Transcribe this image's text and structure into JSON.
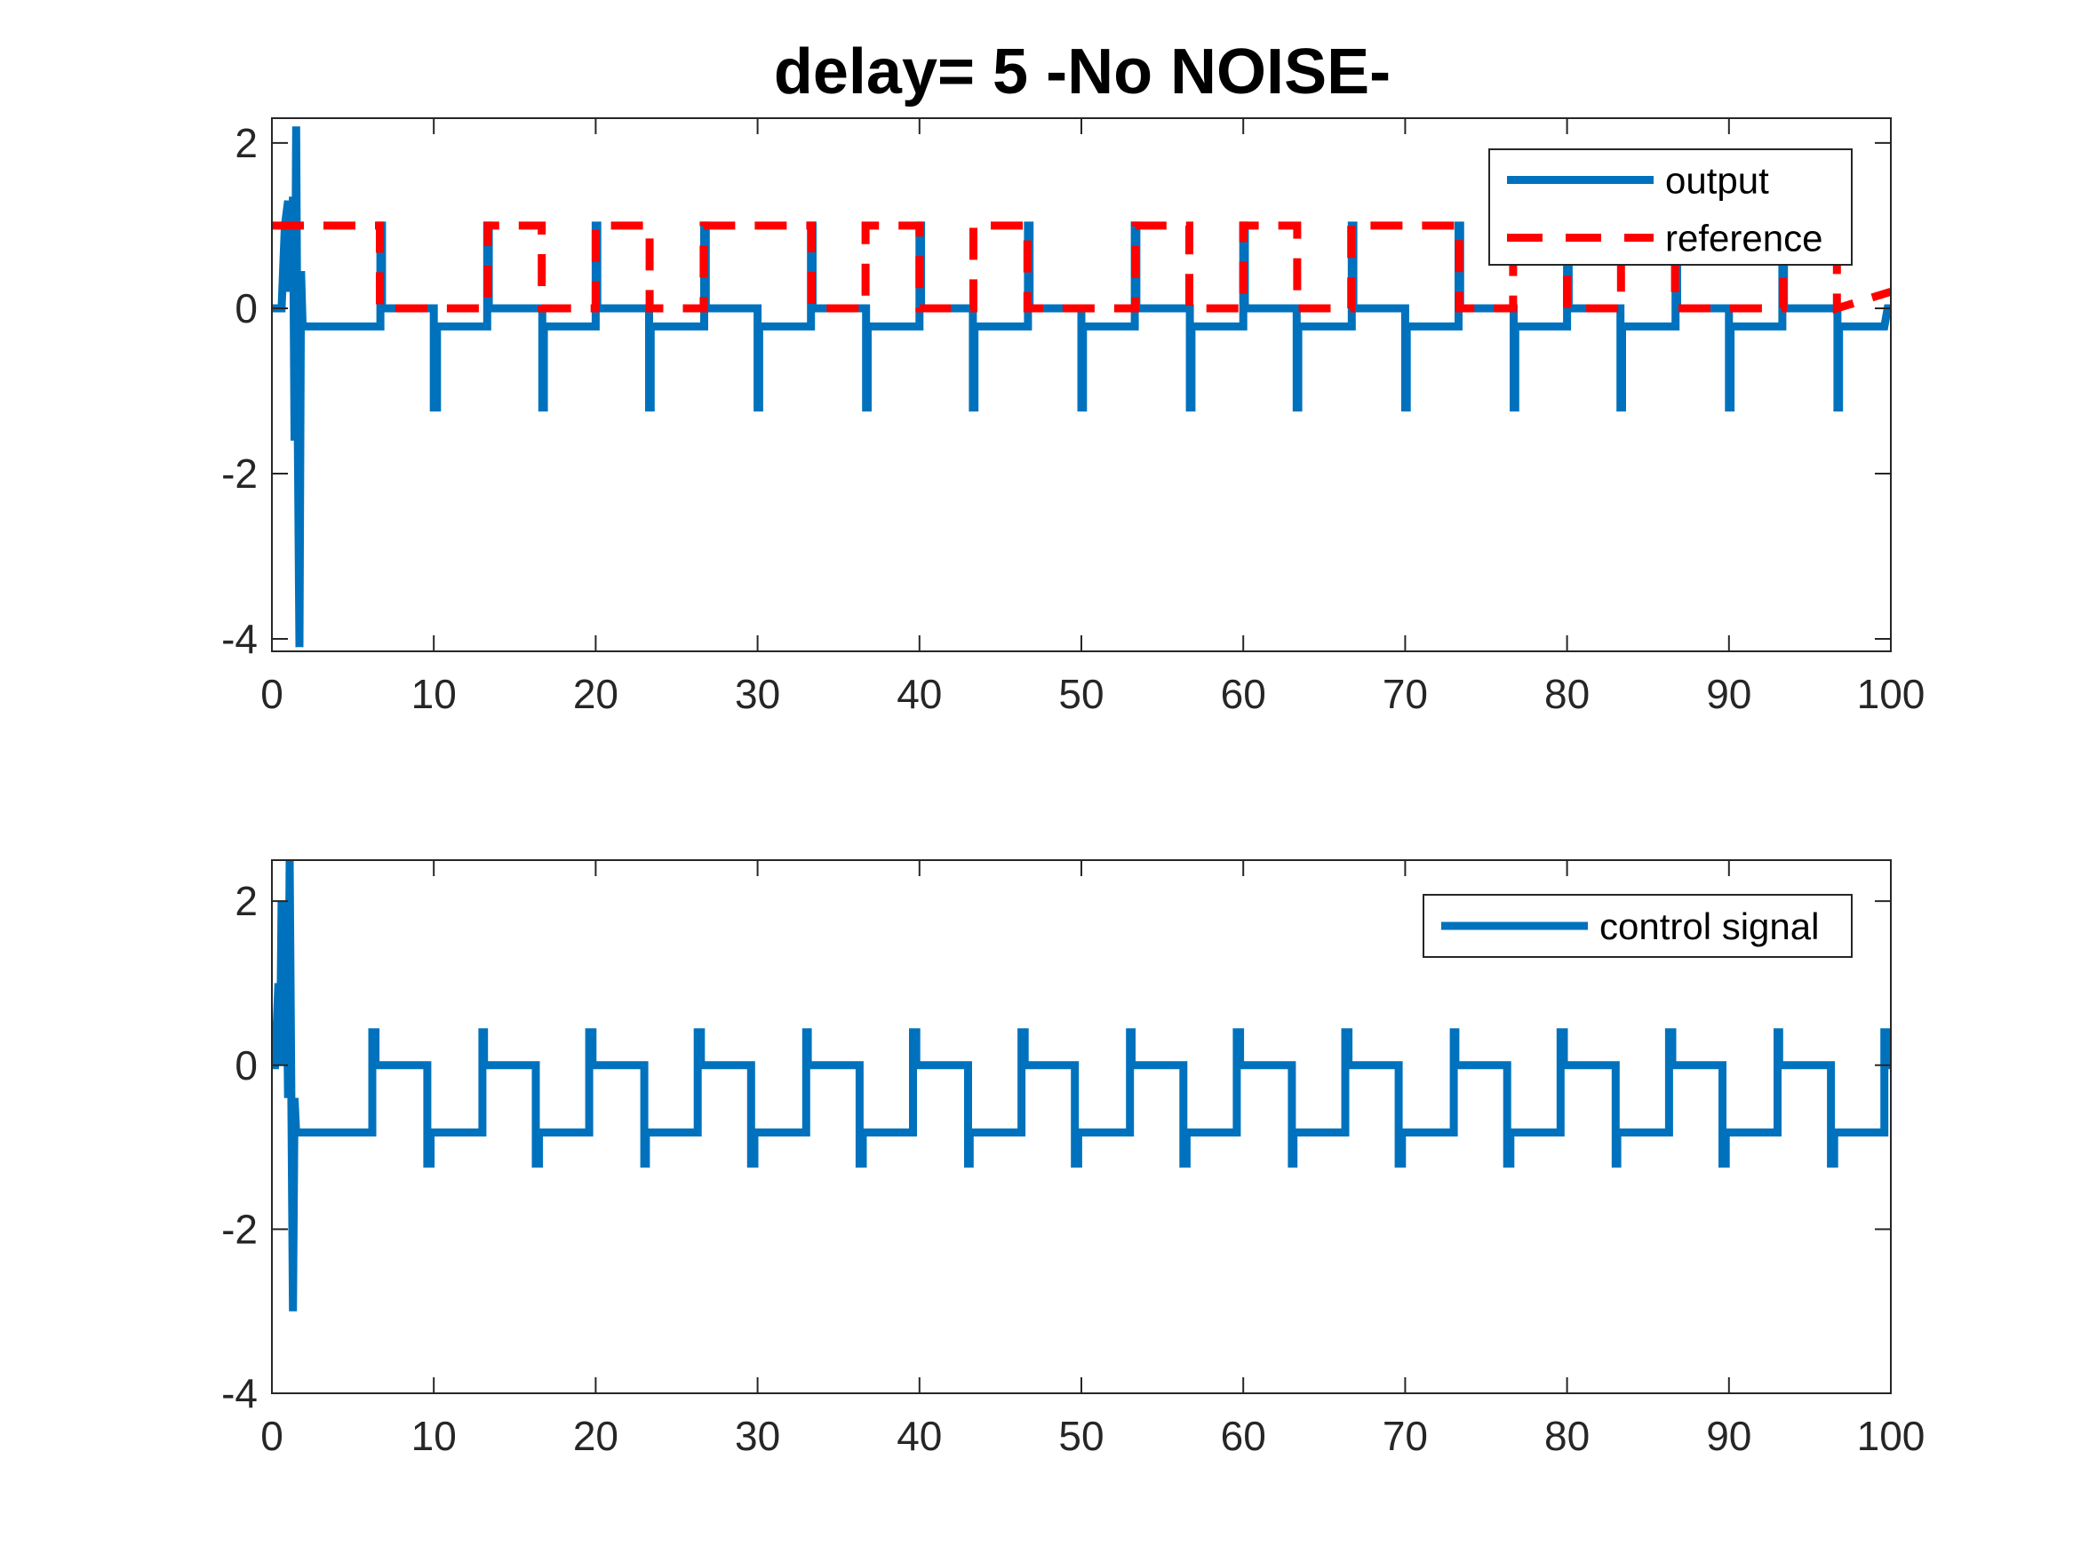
{
  "chart_data": [
    {
      "type": "line",
      "title": "delay= 5  -No NOISE-",
      "xlim": [
        0,
        100
      ],
      "ylim": [
        -4.15,
        2.3
      ],
      "xticks": [
        0,
        10,
        20,
        30,
        40,
        50,
        60,
        70,
        80,
        90,
        100
      ],
      "yticks": [
        -4,
        -2,
        0,
        2
      ],
      "xtick_labels": [
        "0",
        "10",
        "20",
        "30",
        "40",
        "50",
        "60",
        "70",
        "80",
        "90",
        "100"
      ],
      "ytick_labels": [
        "-4",
        "-2",
        "0",
        "2"
      ],
      "grid": false,
      "legend_position": "top-right",
      "series": [
        {
          "name": "output",
          "color": "#0072BD",
          "style": "solid",
          "x": [
            0,
            0.6,
            0.8,
            1.0,
            1.1,
            1.3,
            1.4,
            1.5,
            1.6,
            1.7,
            1.8,
            1.9,
            2.0,
            2.2,
            6.7,
            6.7,
            6.8,
            6.8,
            10.0,
            10.0,
            10.2,
            10.2,
            13.3,
            13.3,
            13.4,
            13.4,
            16.7,
            16.7,
            16.8,
            16.8,
            20.0,
            20.0,
            20.1,
            20.1,
            23.3,
            23.3,
            23.4,
            23.4,
            26.7,
            26.7,
            26.8,
            26.8,
            30.0,
            30.0,
            30.1,
            30.1,
            33.3,
            33.3,
            33.4,
            33.4,
            36.7,
            36.7,
            36.8,
            36.8,
            40.0,
            40.0,
            40.1,
            40.1,
            43.3,
            43.3,
            43.4,
            43.4,
            46.7,
            46.7,
            46.8,
            46.8,
            50.0,
            50.0,
            50.1,
            50.1,
            53.3,
            53.3,
            53.4,
            53.4,
            56.7,
            56.7,
            56.8,
            56.8,
            60.0,
            60.0,
            60.1,
            60.1,
            63.3,
            63.3,
            63.4,
            63.4,
            66.7,
            66.7,
            66.8,
            66.8,
            70.0,
            70.0,
            70.1,
            70.1,
            73.3,
            73.3,
            73.4,
            73.4,
            76.7,
            76.7,
            76.8,
            76.8,
            80.0,
            80.0,
            80.1,
            80.1,
            83.3,
            83.3,
            83.4,
            83.4,
            86.7,
            86.7,
            86.8,
            86.8,
            90.0,
            90.0,
            90.1,
            90.1,
            93.3,
            93.3,
            93.4,
            93.4,
            96.7,
            96.7,
            96.8,
            96.8,
            99.6,
            99.8,
            100
          ],
          "y": [
            0,
            0,
            1.0,
            1.3,
            0.2,
            1.35,
            -1.6,
            2.2,
            -1.6,
            -4.1,
            0.45,
            -0.22,
            -0.22,
            -0.22,
            -0.22,
            1.0,
            1.0,
            0,
            0,
            -1.2,
            -1.2,
            -0.22,
            -0.22,
            1.0,
            1.0,
            0,
            0,
            -1.2,
            -1.2,
            -0.22,
            -0.22,
            1.0,
            1.0,
            0,
            0,
            -1.2,
            -1.2,
            -0.22,
            -0.22,
            1.0,
            1.0,
            0,
            0,
            -1.2,
            -1.2,
            -0.22,
            -0.22,
            1.0,
            1.0,
            0,
            0,
            -1.2,
            -1.2,
            -0.22,
            -0.22,
            1.0,
            1.0,
            0,
            0,
            -1.2,
            -1.2,
            -0.22,
            -0.22,
            1.0,
            1.0,
            0,
            0,
            -1.2,
            -1.2,
            -0.22,
            -0.22,
            1.0,
            1.0,
            0,
            0,
            -1.2,
            -1.2,
            -0.22,
            -0.22,
            1.0,
            1.0,
            0,
            0,
            -1.2,
            -1.2,
            -0.22,
            -0.22,
            1.0,
            1.0,
            0,
            0,
            -1.2,
            -1.2,
            -0.22,
            -0.22,
            1.0,
            1.0,
            0,
            0,
            -1.2,
            -1.2,
            -0.22,
            -0.22,
            1.0,
            1.0,
            0,
            0,
            -1.2,
            -1.2,
            -0.22,
            -0.22,
            1.0,
            1.0,
            0,
            0,
            -1.2,
            -1.2,
            -0.22,
            -0.22,
            1.0,
            1.0,
            0,
            0,
            -1.2,
            -1.2,
            -0.22,
            -0.22,
            0,
            0
          ]
        },
        {
          "name": "reference",
          "color": "#FF0000",
          "style": "dashed",
          "x": [
            0,
            6.67,
            6.67,
            13.33,
            13.33,
            16.67,
            16.67,
            20.0,
            20.0,
            23.33,
            23.33,
            26.67,
            26.67,
            33.33,
            33.33,
            36.67,
            36.67,
            40.0,
            40.0,
            43.33,
            43.33,
            46.67,
            46.67,
            53.33,
            53.33,
            56.67,
            56.67,
            60.0,
            60.0,
            63.33,
            63.33,
            66.67,
            66.67,
            73.33,
            73.33,
            76.67,
            76.67,
            80.0,
            80.0,
            83.33,
            83.33,
            86.67,
            86.67,
            93.33,
            93.33,
            96.67,
            96.67,
            100
          ],
          "y": [
            1,
            1,
            0,
            0,
            1,
            1,
            0,
            0,
            1,
            1,
            0,
            0,
            1,
            1,
            0,
            0,
            1,
            1,
            0,
            0,
            1,
            1,
            0,
            0,
            1,
            1,
            0,
            0,
            1,
            1,
            0,
            0,
            1,
            1,
            0,
            0,
            1,
            1,
            0,
            0,
            1,
            1,
            0,
            0,
            1,
            1,
            0,
            0.2
          ]
        }
      ]
    },
    {
      "type": "line",
      "xlim": [
        0,
        100
      ],
      "ylim": [
        -4,
        2.5
      ],
      "xticks": [
        0,
        10,
        20,
        30,
        40,
        50,
        60,
        70,
        80,
        90,
        100
      ],
      "yticks": [
        -4,
        -2,
        0,
        2
      ],
      "xtick_labels": [
        "0",
        "10",
        "20",
        "30",
        "40",
        "50",
        "60",
        "70",
        "80",
        "90",
        "100"
      ],
      "ytick_labels": [
        "-4",
        "-2",
        "0",
        "2"
      ],
      "grid": false,
      "legend_position": "top-right",
      "series": [
        {
          "name": "control signal",
          "color": "#0072BD",
          "style": "solid",
          "x": [
            0,
            0.2,
            0.4,
            0.5,
            0.6,
            0.7,
            0.9,
            1.0,
            1.1,
            1.2,
            1.3,
            1.4,
            1.5,
            1.6,
            1.8,
            6.2,
            6.2,
            6.4,
            6.4,
            9.6,
            9.6,
            9.8,
            9.8,
            13.0,
            13.0,
            13.1,
            13.1,
            16.3,
            16.3,
            16.5,
            16.5,
            19.6,
            19.6,
            19.8,
            19.8,
            23.0,
            23.0,
            23.1,
            23.1,
            26.3,
            26.3,
            26.5,
            26.5,
            29.6,
            29.6,
            29.8,
            29.8,
            33.0,
            33.0,
            33.1,
            33.1,
            36.3,
            36.3,
            36.5,
            36.5,
            39.6,
            39.6,
            39.8,
            39.8,
            43.0,
            43.0,
            43.1,
            43.1,
            46.3,
            46.3,
            46.5,
            46.5,
            49.6,
            49.6,
            49.8,
            49.8,
            53.0,
            53.0,
            53.1,
            53.1,
            56.3,
            56.3,
            56.5,
            56.5,
            59.6,
            59.6,
            59.8,
            59.8,
            63.0,
            63.0,
            63.1,
            63.1,
            66.3,
            66.3,
            66.5,
            66.5,
            69.6,
            69.6,
            69.8,
            69.8,
            73.0,
            73.0,
            73.1,
            73.1,
            76.3,
            76.3,
            76.5,
            76.5,
            79.6,
            79.6,
            79.8,
            79.8,
            83.0,
            83.0,
            83.1,
            83.1,
            86.3,
            86.3,
            86.5,
            86.5,
            89.6,
            89.6,
            89.8,
            89.8,
            93.0,
            93.0,
            93.1,
            93.1,
            96.3,
            96.3,
            96.5,
            96.5,
            99.6,
            99.6,
            99.8,
            99.8,
            100
          ],
          "y": [
            0,
            0,
            1.0,
            0,
            2.0,
            0.2,
            1.3,
            -0.4,
            2.5,
            -0.4,
            -3.0,
            -0.4,
            -0.82,
            -0.82,
            -0.82,
            -0.82,
            0.4,
            0.4,
            0,
            0,
            -1.2,
            -1.2,
            -0.82,
            -0.82,
            0.4,
            0.4,
            0,
            0,
            -1.2,
            -1.2,
            -0.82,
            -0.82,
            0.4,
            0.4,
            0,
            0,
            -1.2,
            -1.2,
            -0.82,
            -0.82,
            0.4,
            0.4,
            0,
            0,
            -1.2,
            -1.2,
            -0.82,
            -0.82,
            0.4,
            0.4,
            0,
            0,
            -1.2,
            -1.2,
            -0.82,
            -0.82,
            0.4,
            0.4,
            0,
            0,
            -1.2,
            -1.2,
            -0.82,
            -0.82,
            0.4,
            0.4,
            0,
            0,
            -1.2,
            -1.2,
            -0.82,
            -0.82,
            0.4,
            0.4,
            0,
            0,
            -1.2,
            -1.2,
            -0.82,
            -0.82,
            0.4,
            0.4,
            0,
            0,
            -1.2,
            -1.2,
            -0.82,
            -0.82,
            0.4,
            0.4,
            0,
            0,
            -1.2,
            -1.2,
            -0.82,
            -0.82,
            0.4,
            0.4,
            0,
            0,
            -1.2,
            -1.2,
            -0.82,
            -0.82,
            0.4,
            0.4,
            0,
            0,
            -1.2,
            -1.2,
            -0.82,
            -0.82,
            0.4,
            0.4,
            0,
            0,
            -1.2,
            -1.2,
            -0.82,
            -0.82,
            0.4,
            0.4,
            0,
            0,
            -1.2,
            -1.2,
            -0.82,
            -0.82,
            0.4,
            0.4,
            0,
            0
          ]
        }
      ]
    }
  ]
}
